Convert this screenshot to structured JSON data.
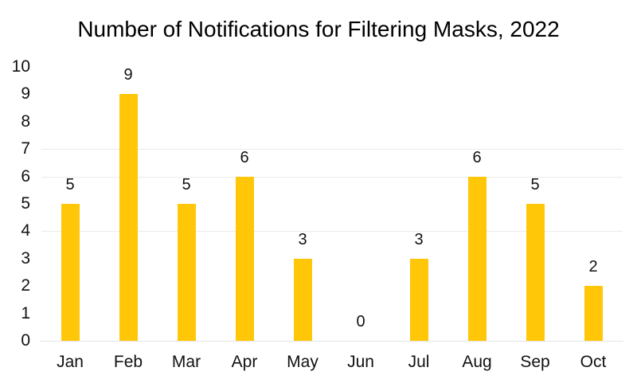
{
  "chart_data": {
    "type": "bar",
    "title": "Number of Notifications for Filtering Masks, 2022",
    "categories": [
      "Jan",
      "Feb",
      "Mar",
      "Apr",
      "May",
      "Jun",
      "Jul",
      "Aug",
      "Sep",
      "Oct"
    ],
    "values": [
      5,
      9,
      5,
      6,
      3,
      0,
      3,
      6,
      5,
      2
    ],
    "data_labels": [
      5,
      9,
      5,
      6,
      3,
      0,
      3,
      6,
      5,
      2
    ],
    "xlabel": "",
    "ylabel": "",
    "ylim": [
      0,
      10
    ],
    "y_ticks": [
      0,
      1,
      2,
      3,
      4,
      5,
      6,
      7,
      8,
      9,
      10
    ],
    "legend_position": "none",
    "bar_color": "#FFC707",
    "gridline_color": "#EBEBEB",
    "visible_gridlines": [
      7,
      6,
      4
    ],
    "baseline_color": "#C8C8C8",
    "baseline_style": "dotted",
    "title_color": "#000000",
    "label_color": "#111111"
  }
}
